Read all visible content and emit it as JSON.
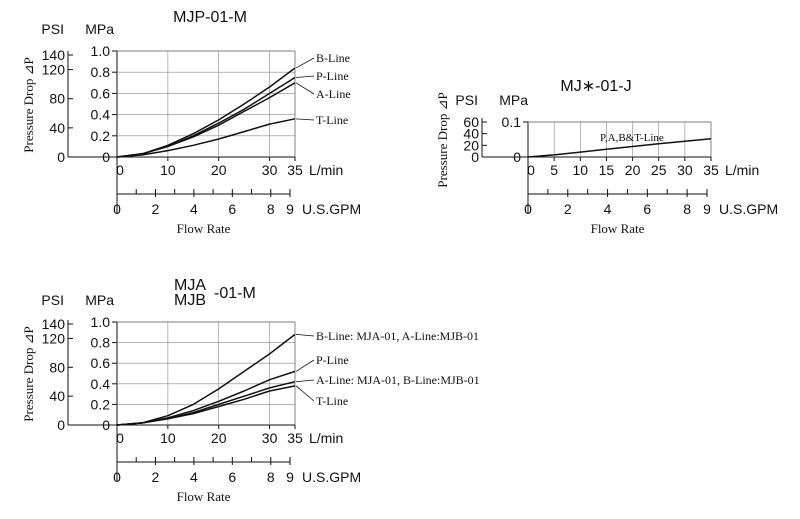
{
  "chart_data": [
    {
      "id": "mjp",
      "type": "line",
      "title": "MJP-01-M",
      "title_lines": [
        "MJP-01-M"
      ],
      "ylabel": "Pressure Drop ⊿P",
      "xlabel": "Flow Rate",
      "psi_label": "PSI",
      "mpa_label": "MPa",
      "lmin_unit": "L/min",
      "gpm_unit": "U.S.GPM",
      "mpa_ticks": [
        "1.0",
        "0.8",
        "0.6",
        "0.4",
        "0.2",
        "0"
      ],
      "mpa_tick_values": [
        1.0,
        0.8,
        0.6,
        0.4,
        0.2,
        0
      ],
      "psi_ticks": [
        "140",
        "120",
        "80",
        "40",
        "0"
      ],
      "psi_tick_values": [
        140,
        120,
        80,
        40,
        0
      ],
      "lmin_ticks": [
        "0",
        "10",
        "20",
        "30",
        "35"
      ],
      "lmin_tick_values": [
        0,
        10,
        20,
        30,
        35
      ],
      "gpm_ticks": [
        "0",
        "2",
        "4",
        "6",
        "8",
        "9"
      ],
      "gpm_tick_values": [
        0,
        2,
        4,
        6,
        8,
        9
      ],
      "xlim": [
        0,
        35
      ],
      "ylim": [
        0,
        1.0
      ],
      "series": [
        {
          "name": "B-Line",
          "x": [
            0,
            5,
            10,
            15,
            20,
            25,
            30,
            35
          ],
          "y": [
            0,
            0.03,
            0.11,
            0.22,
            0.35,
            0.5,
            0.66,
            0.84
          ]
        },
        {
          "name": "P-Line",
          "x": [
            0,
            5,
            10,
            15,
            20,
            25,
            30,
            35
          ],
          "y": [
            0,
            0.03,
            0.1,
            0.2,
            0.32,
            0.45,
            0.6,
            0.75
          ]
        },
        {
          "name": "A-Line",
          "x": [
            0,
            5,
            10,
            15,
            20,
            25,
            30,
            35
          ],
          "y": [
            0,
            0.03,
            0.1,
            0.19,
            0.3,
            0.43,
            0.56,
            0.7
          ]
        },
        {
          "name": "T-Line",
          "x": [
            0,
            5,
            10,
            15,
            20,
            25,
            30,
            35
          ],
          "y": [
            0,
            0.02,
            0.06,
            0.11,
            0.17,
            0.24,
            0.31,
            0.36
          ]
        }
      ]
    },
    {
      "id": "mjj",
      "type": "line",
      "title": "MJ∗-01-J",
      "title_lines": [
        "MJ∗-01-J"
      ],
      "ylabel": "Pressure Drop ⊿P",
      "xlabel": "Flow Rate",
      "psi_label": "PSI",
      "mpa_label": "MPa",
      "lmin_unit": "L/min",
      "gpm_unit": "U.S.GPM",
      "mpa_ticks": [
        "0.1",
        "0"
      ],
      "mpa_tick_values": [
        0.1,
        0
      ],
      "psi_ticks": [
        "60",
        "40",
        "20",
        "0"
      ],
      "psi_tick_values": [
        60,
        40,
        20,
        0
      ],
      "lmin_ticks": [
        "0",
        "5",
        "10",
        "15",
        "20",
        "25",
        "30",
        "35"
      ],
      "lmin_tick_values": [
        0,
        5,
        10,
        15,
        20,
        25,
        30,
        35
      ],
      "gpm_ticks": [
        "0",
        "2",
        "4",
        "6",
        "8",
        "9"
      ],
      "gpm_tick_values": [
        0,
        2,
        4,
        6,
        8,
        9
      ],
      "xlim": [
        0,
        35
      ],
      "ylim": [
        0,
        0.1
      ],
      "series": [
        {
          "name": "P,A,B&T-Line",
          "x": [
            0,
            5,
            10,
            15,
            20,
            25,
            30,
            35
          ],
          "y": [
            0,
            0.006,
            0.014,
            0.022,
            0.03,
            0.038,
            0.045,
            0.052
          ]
        }
      ]
    },
    {
      "id": "mja",
      "type": "line",
      "title": "MJA MJB-01-M",
      "title_lines": [
        "MJA",
        "MJB",
        "-01-M"
      ],
      "ylabel": "Pressure Drop ⊿P",
      "xlabel": "Flow Rate",
      "psi_label": "PSI",
      "mpa_label": "MPa",
      "lmin_unit": "L/min",
      "gpm_unit": "U.S.GPM",
      "mpa_ticks": [
        "1.0",
        "0.8",
        "0.6",
        "0.4",
        "0.2",
        "0"
      ],
      "mpa_tick_values": [
        1.0,
        0.8,
        0.6,
        0.4,
        0.2,
        0
      ],
      "psi_ticks": [
        "140",
        "120",
        "80",
        "40",
        "0"
      ],
      "psi_tick_values": [
        140,
        120,
        80,
        40,
        0
      ],
      "lmin_ticks": [
        "0",
        "10",
        "20",
        "30",
        "35"
      ],
      "lmin_tick_values": [
        0,
        10,
        20,
        30,
        35
      ],
      "gpm_ticks": [
        "0",
        "2",
        "4",
        "6",
        "8",
        "9"
      ],
      "gpm_tick_values": [
        0,
        2,
        4,
        6,
        8,
        9
      ],
      "xlim": [
        0,
        35
      ],
      "ylim": [
        0,
        1.0
      ],
      "series": [
        {
          "name": "B-Line: MJA-01, A-Line:MJB-01",
          "x": [
            0,
            5,
            10,
            15,
            20,
            25,
            30,
            35
          ],
          "y": [
            0,
            0.02,
            0.09,
            0.2,
            0.35,
            0.52,
            0.69,
            0.88
          ]
        },
        {
          "name": "P-Line",
          "x": [
            0,
            5,
            10,
            15,
            20,
            25,
            30,
            35
          ],
          "y": [
            0,
            0.02,
            0.07,
            0.14,
            0.23,
            0.33,
            0.44,
            0.52
          ]
        },
        {
          "name": "A-Line: MJA-01, B-Line:MJB-01",
          "x": [
            0,
            5,
            10,
            15,
            20,
            25,
            30,
            35
          ],
          "y": [
            0,
            0.02,
            0.06,
            0.12,
            0.2,
            0.28,
            0.36,
            0.42
          ]
        },
        {
          "name": "T-Line",
          "x": [
            0,
            5,
            10,
            15,
            20,
            25,
            30,
            35
          ],
          "y": [
            0,
            0.02,
            0.06,
            0.11,
            0.18,
            0.25,
            0.33,
            0.38
          ]
        }
      ]
    }
  ]
}
